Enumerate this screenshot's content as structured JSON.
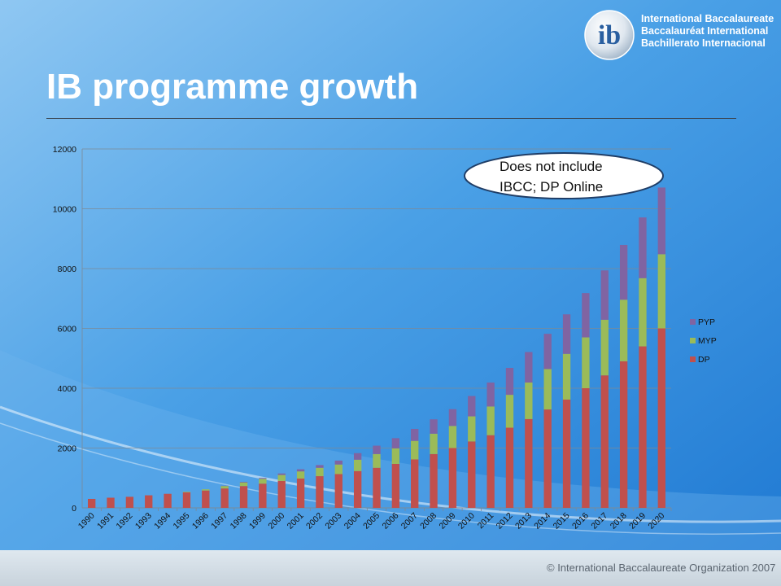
{
  "slide": {
    "title": "IB programme growth",
    "copyright": "© International Baccalaureate Organization 2007",
    "org_names": [
      "International Baccalaureate",
      "Baccalauréat International",
      "Bachillerato Internacional"
    ],
    "logo_text": "ib"
  },
  "callout": {
    "lines": [
      "Does not include",
      "IBCC; DP Online"
    ]
  },
  "colors": {
    "DP": "#c0504d",
    "MYP": "#9bbb59",
    "PYP": "#8064a2"
  },
  "chart_data": {
    "type": "bar",
    "stacked": true,
    "categories": [
      "1990",
      "1991",
      "1992",
      "1993",
      "1994",
      "1995",
      "1996",
      "1997",
      "1998",
      "1999",
      "2000",
      "2001",
      "2002",
      "2003",
      "2004",
      "2005",
      "2006",
      "2007",
      "2008",
      "2009",
      "2010",
      "2011",
      "2012",
      "2013",
      "2014",
      "2015",
      "2016",
      "2017",
      "2018",
      "2019",
      "2020"
    ],
    "series": [
      {
        "name": "DP",
        "values": [
          300,
          340,
          370,
          420,
          470,
          520,
          580,
          650,
          730,
          810,
          900,
          980,
          1060,
          1130,
          1230,
          1340,
          1470,
          1620,
          1800,
          2000,
          2220,
          2430,
          2680,
          2970,
          3290,
          3620,
          4000,
          4430,
          4900,
          5400,
          6000
        ]
      },
      {
        "name": "MYP",
        "values": [
          0,
          0,
          0,
          0,
          0,
          20,
          40,
          80,
          120,
          160,
          200,
          240,
          280,
          320,
          380,
          460,
          520,
          620,
          680,
          740,
          840,
          960,
          1100,
          1220,
          1350,
          1530,
          1700,
          1860,
          2060,
          2280,
          2480
        ]
      },
      {
        "name": "PYP",
        "values": [
          0,
          0,
          0,
          0,
          0,
          0,
          0,
          10,
          20,
          30,
          50,
          70,
          90,
          130,
          220,
          280,
          340,
          400,
          480,
          560,
          680,
          800,
          900,
          1020,
          1180,
          1320,
          1480,
          1650,
          1830,
          2030,
          2230
        ]
      }
    ],
    "yticks": [
      "0",
      "2000",
      "4000",
      "6000",
      "8000",
      "10000",
      "12000"
    ],
    "ylim": [
      0,
      12000
    ],
    "legend": [
      "PYP",
      "MYP",
      "DP"
    ],
    "legend_position": "right",
    "grid": true
  }
}
